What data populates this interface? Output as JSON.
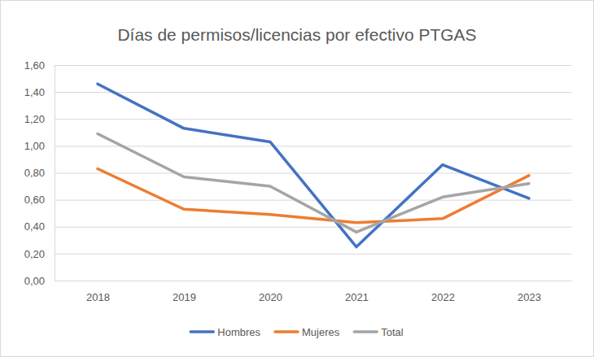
{
  "chart_data": {
    "type": "line",
    "title": "Días de permisos/licencias por efectivo PTGAS",
    "categories": [
      "2018",
      "2019",
      "2020",
      "2021",
      "2022",
      "2023"
    ],
    "series": [
      {
        "name": "Hombres",
        "color": "#4472c4",
        "values": [
          1.46,
          1.13,
          1.03,
          0.25,
          0.86,
          0.61
        ]
      },
      {
        "name": "Mujeres",
        "color": "#ed7d31",
        "values": [
          0.83,
          0.53,
          0.49,
          0.43,
          0.46,
          0.78
        ]
      },
      {
        "name": "Total",
        "color": "#a5a5a5",
        "values": [
          1.09,
          0.77,
          0.7,
          0.36,
          0.62,
          0.72
        ]
      }
    ],
    "ylim": [
      0,
      1.6
    ],
    "yticks": [
      {
        "value": 0,
        "label": "0,00"
      },
      {
        "value": 0.2,
        "label": "0,20"
      },
      {
        "value": 0.4,
        "label": "0,40"
      },
      {
        "value": 0.6,
        "label": "0,60"
      },
      {
        "value": 0.8,
        "label": "0,80"
      },
      {
        "value": 1.0,
        "label": "1,00"
      },
      {
        "value": 1.2,
        "label": "1,20"
      },
      {
        "value": 1.4,
        "label": "1,40"
      },
      {
        "value": 1.6,
        "label": "1,60"
      }
    ],
    "grid": true,
    "legend": "bottom"
  }
}
